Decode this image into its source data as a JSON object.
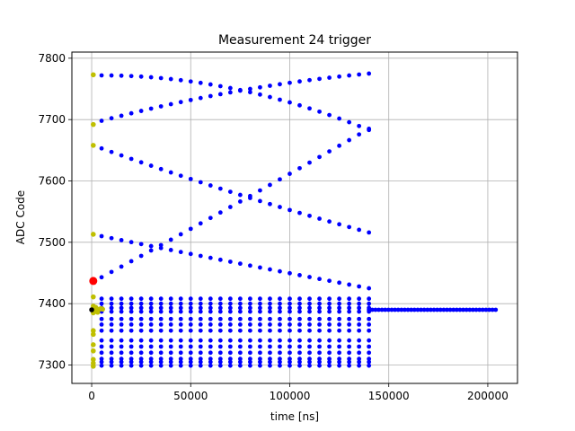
{
  "chart_data": {
    "type": "scatter",
    "title": "Measurement 24 trigger",
    "xlabel": "time [ns]",
    "ylabel": "ADC Code",
    "xlim": [
      -10000,
      215000
    ],
    "ylim": [
      7270,
      7810
    ],
    "xticks": [
      0,
      50000,
      100000,
      150000,
      200000
    ],
    "xtick_labels": [
      "0",
      "50000",
      "100000",
      "150000",
      "200000"
    ],
    "yticks": [
      7300,
      7400,
      7500,
      7600,
      7700,
      7800
    ],
    "ytick_labels": [
      "7300",
      "7400",
      "7500",
      "7600",
      "7700",
      "7800"
    ],
    "grid": true,
    "colors": {
      "blue": "#0000ff",
      "olive": "#bfbf00",
      "red": "#ff0000",
      "black": "#000000",
      "grid": "#b0b0b0"
    },
    "series": [
      {
        "color": "blue",
        "curves": [
          {
            "type": "line",
            "x0": 5000,
            "x1": 140000,
            "y0": 7772,
            "y1": 7683,
            "y0b": 7772,
            "y1b": 7775,
            "n": 28,
            "shape": "upper"
          },
          {
            "type": "bezier",
            "x0": 5000,
            "x1": 140000,
            "y0": 7698,
            "ymid": 7755,
            "y1": 7775,
            "n": 28
          },
          {
            "type": "bezier",
            "x0": 5000,
            "x1": 140000,
            "y0": 7653,
            "ymid": 7575,
            "y1": 7516,
            "n": 28
          },
          {
            "type": "bezier",
            "x0": 5000,
            "x1": 140000,
            "y0": 7510,
            "ymid": 7466,
            "y1": 7425,
            "n": 28
          },
          {
            "type": "bezier",
            "x0": 5000,
            "x1": 140000,
            "y0": 7443,
            "ymid": 7560,
            "y1": 7685,
            "n": 28
          }
        ],
        "flat_start": 5000,
        "flat_end": 140000,
        "flat_levels": [
          7408,
          7400,
          7393,
          7387,
          7375,
          7366,
          7356,
          7340,
          7330,
          7320,
          7310,
          7305,
          7299
        ],
        "flat_n": 28,
        "tail_start": 140000,
        "tail_end": 204000,
        "tail_y": 7390,
        "tail_n": 40
      },
      {
        "color": "olive",
        "points": [
          [
            800,
            7773
          ],
          [
            800,
            7692
          ],
          [
            800,
            7658
          ],
          [
            800,
            7513
          ],
          [
            800,
            7411
          ],
          [
            800,
            7396
          ],
          [
            800,
            7385
          ],
          [
            800,
            7356
          ],
          [
            800,
            7350
          ],
          [
            800,
            7333
          ],
          [
            800,
            7323
          ],
          [
            800,
            7309
          ],
          [
            800,
            7303
          ],
          [
            800,
            7298
          ],
          [
            1800,
            7388
          ],
          [
            2800,
            7390
          ],
          [
            3800,
            7391
          ],
          [
            4800,
            7392
          ],
          [
            2000,
            7394
          ],
          [
            3000,
            7386
          ],
          [
            5500,
            7391
          ]
        ]
      },
      {
        "color": "red",
        "points": [
          [
            800,
            7437
          ]
        ]
      },
      {
        "color": "black",
        "points": [
          [
            0,
            7390
          ]
        ]
      }
    ]
  }
}
